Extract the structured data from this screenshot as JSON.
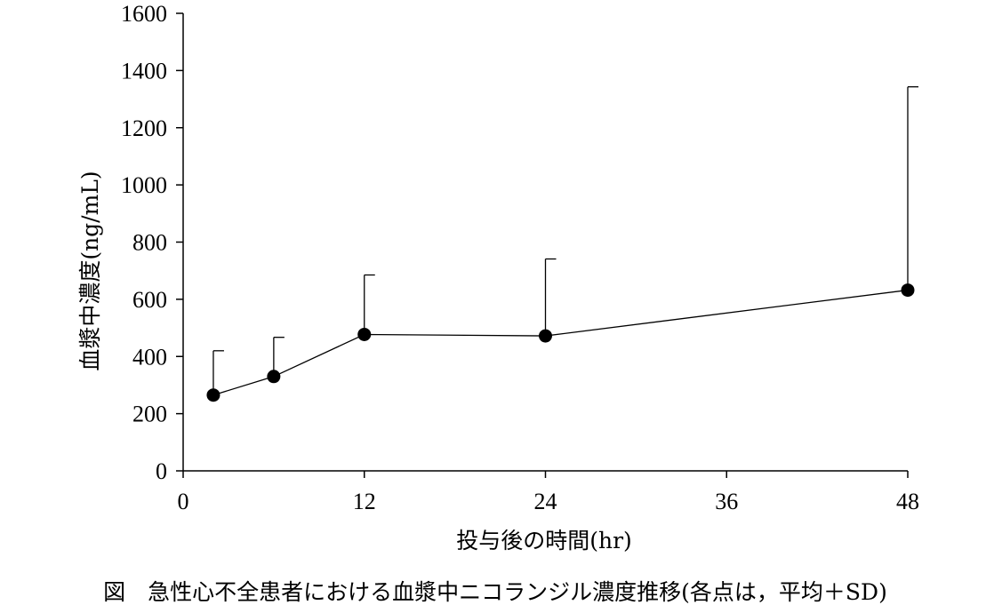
{
  "chart_data": {
    "type": "line",
    "x": [
      2,
      6,
      12,
      24,
      48
    ],
    "series": [
      {
        "values": [
          265,
          330,
          477,
          472,
          632
        ],
        "sd_upper": [
          420,
          467,
          685,
          741,
          1343
        ],
        "color": "#000000"
      }
    ],
    "xlabel": "投与後の時間(hr)",
    "ylabel": "血漿中濃度(ng/mL)",
    "xlim": [
      0,
      48
    ],
    "ylim": [
      0,
      1600
    ],
    "x_ticks": [
      0,
      12,
      24,
      36,
      48
    ],
    "y_ticks": [
      0,
      200,
      400,
      600,
      800,
      1000,
      1200,
      1400,
      1600
    ],
    "grid": false
  },
  "caption": "図　急性心不全患者における血漿中ニコランジル濃度推移(各点は，平均＋SD)"
}
